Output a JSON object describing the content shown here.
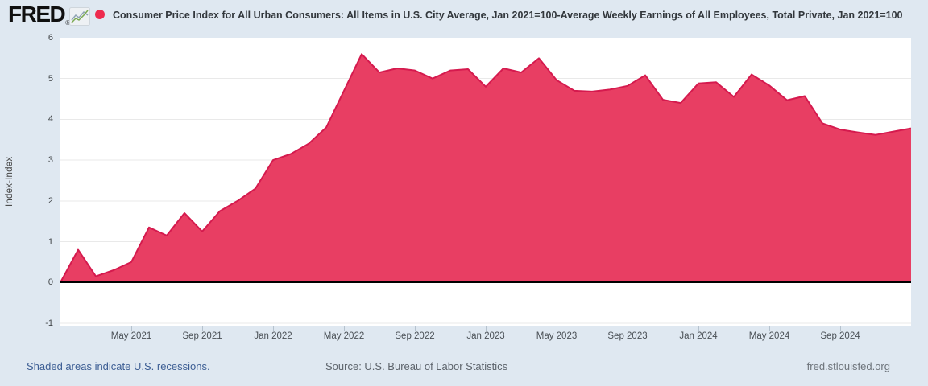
{
  "header": {
    "logo": "FRED",
    "registered_mark": "®",
    "title": "Consumer Price Index for All Urban Consumers: All Items in U.S. City Average, Jan 2021=100-Average Weekly Earnings of All Employees, Total Private, Jan 2021=100"
  },
  "chart_data": {
    "type": "area",
    "title": "Consumer Price Index for All Urban Consumers: All Items in U.S. City Average, Jan 2021=100-Average Weekly Earnings of All Employees, Total Private, Jan 2021=100",
    "y_axis_label": "Index-Index",
    "x": [
      "Jan 2021",
      "Feb 2021",
      "Mar 2021",
      "Apr 2021",
      "May 2021",
      "Jun 2021",
      "Jul 2021",
      "Aug 2021",
      "Sep 2021",
      "Oct 2021",
      "Nov 2021",
      "Dec 2021",
      "Jan 2022",
      "Feb 2022",
      "Mar 2022",
      "Apr 2022",
      "May 2022",
      "Jun 2022",
      "Jul 2022",
      "Aug 2022",
      "Sep 2022",
      "Oct 2022",
      "Nov 2022",
      "Dec 2022",
      "Jan 2023",
      "Feb 2023",
      "Mar 2023",
      "Apr 2023",
      "May 2023",
      "Jun 2023",
      "Jul 2023",
      "Aug 2023",
      "Sep 2023",
      "Oct 2023",
      "Nov 2023",
      "Dec 2023",
      "Jan 2024",
      "Feb 2024",
      "Mar 2024",
      "Apr 2024",
      "May 2024",
      "Jun 2024",
      "Jul 2024",
      "Aug 2024",
      "Sep 2024",
      "Oct 2024",
      "Nov 2024",
      "Dec 2024",
      "Jan 2025"
    ],
    "values": [
      0,
      0.8,
      0.15,
      0.3,
      0.5,
      1.35,
      1.15,
      1.7,
      1.25,
      1.75,
      2.0,
      2.3,
      3.0,
      3.15,
      3.4,
      3.8,
      4.7,
      5.6,
      5.15,
      5.25,
      5.2,
      5.0,
      5.2,
      5.23,
      4.8,
      5.25,
      5.15,
      5.5,
      4.96,
      4.7,
      4.68,
      4.73,
      4.82,
      5.08,
      4.48,
      4.4,
      4.88,
      4.91,
      4.55,
      5.1,
      4.83,
      4.47,
      4.57,
      3.9,
      3.75,
      3.68,
      3.62,
      3.7,
      3.78
    ],
    "x_tick_indices": [
      4,
      8,
      12,
      16,
      20,
      24,
      28,
      32,
      36,
      40,
      44
    ],
    "x_tick_labels": [
      "May 2021",
      "Sep 2021",
      "Jan 2022",
      "May 2022",
      "Sep 2022",
      "Jan 2023",
      "May 2023",
      "Sep 2023",
      "Jan 2024",
      "May 2024",
      "Sep 2024"
    ],
    "y_ticks": [
      6,
      5,
      4,
      3,
      2,
      1,
      0,
      -1
    ],
    "ylim": [
      -1.06,
      6
    ],
    "grid": "horizontal",
    "legend_position": "top",
    "colors": {
      "area_fill": "#e83e63",
      "line": "#d51a4e",
      "legend_dot": "#ee2b4e",
      "zero_line": "#000000",
      "gridline": "#e9e9e9",
      "page_background": "#dfe8f1",
      "plot_background": "#ffffff"
    }
  },
  "footer": {
    "recessions_note": "Shaded areas indicate U.S. recessions.",
    "source": "Source: U.S. Bureau of Labor Statistics",
    "site": "fred.stlouisfed.org"
  }
}
